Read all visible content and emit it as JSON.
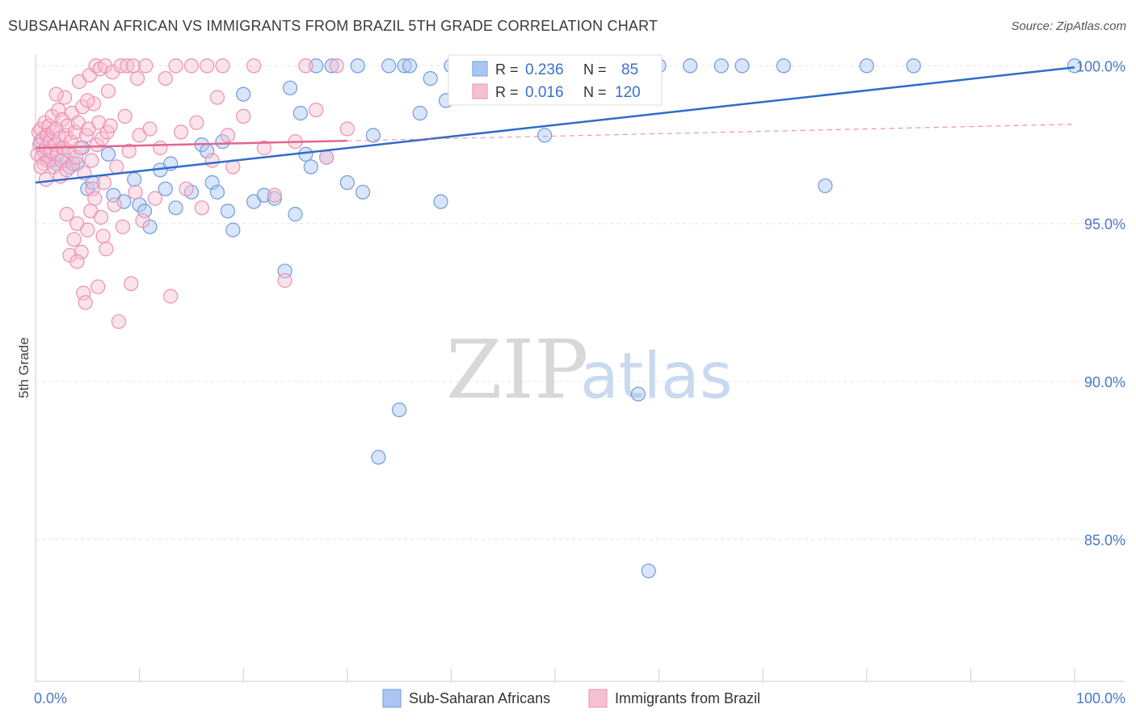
{
  "title": "SUBSAHARAN AFRICAN VS IMMIGRANTS FROM BRAZIL 5TH GRADE CORRELATION CHART",
  "source": "Source: ZipAtlas.com",
  "watermark": {
    "zip": "ZIP",
    "atlas": "atlas"
  },
  "chart_data": {
    "type": "scatter",
    "title": "SUBSAHARAN AFRICAN VS IMMIGRANTS FROM BRAZIL 5TH GRADE CORRELATION CHART",
    "xlabel": "",
    "ylabel": "5th Grade",
    "xlim": [
      0,
      100
    ],
    "ylim": [
      80.5,
      100.6
    ],
    "y_ticks": [
      {
        "value": 85,
        "label": "85.0%"
      },
      {
        "value": 90,
        "label": "90.0%"
      },
      {
        "value": 95,
        "label": "95.0%"
      },
      {
        "value": 100,
        "label": "100.0%"
      }
    ],
    "x_tick_labels": {
      "min": "0.0%",
      "max": "100.0%"
    },
    "x_minor_ticks": [
      0,
      10,
      20,
      30,
      40,
      50,
      60,
      70,
      80,
      90,
      100
    ],
    "grid": true,
    "legend": {
      "position": "top-center",
      "rows": [
        {
          "r_label": "R =",
          "r_value": "0.236",
          "n_label": "N =",
          "n_value": "85"
        },
        {
          "r_label": "R =",
          "r_value": "0.016",
          "n_label": "N =",
          "n_value": "120"
        }
      ]
    },
    "series": [
      {
        "name": "Sub-Saharan Africans",
        "color": "#6f9be0",
        "fill": "#aac6f0",
        "line_color": "#2f6cc9",
        "trend": {
          "x0": 0,
          "y0": 96.3,
          "x1": 100,
          "y1": 99.95,
          "solid_to": 100
        },
        "points": [
          [
            0.5,
            97.6
          ],
          [
            0.8,
            97.3
          ],
          [
            1.2,
            97.8
          ],
          [
            1.5,
            97.0
          ],
          [
            2.0,
            96.9
          ],
          [
            2.5,
            97.4
          ],
          [
            3.0,
            97.0
          ],
          [
            3.3,
            96.8
          ],
          [
            4.0,
            96.9
          ],
          [
            4.5,
            97.4
          ],
          [
            5.0,
            96.1
          ],
          [
            5.5,
            96.3
          ],
          [
            7.0,
            97.2
          ],
          [
            7.5,
            95.9
          ],
          [
            8.5,
            95.7
          ],
          [
            9.5,
            96.4
          ],
          [
            10.0,
            95.6
          ],
          [
            10.5,
            95.4
          ],
          [
            11.0,
            94.9
          ],
          [
            12.0,
            96.7
          ],
          [
            12.5,
            96.1
          ],
          [
            13.0,
            96.9
          ],
          [
            13.5,
            95.5
          ],
          [
            15.0,
            96.0
          ],
          [
            16.0,
            97.5
          ],
          [
            16.5,
            97.3
          ],
          [
            17.0,
            96.3
          ],
          [
            17.5,
            96.0
          ],
          [
            18.0,
            97.6
          ],
          [
            18.5,
            95.4
          ],
          [
            19.0,
            94.8
          ],
          [
            20.0,
            99.1
          ],
          [
            21.0,
            95.7
          ],
          [
            22.0,
            95.9
          ],
          [
            23.0,
            95.8
          ],
          [
            24.0,
            93.5
          ],
          [
            24.5,
            99.3
          ],
          [
            25.0,
            95.3
          ],
          [
            25.5,
            98.5
          ],
          [
            26.0,
            97.2
          ],
          [
            26.5,
            96.8
          ],
          [
            27.0,
            100.0
          ],
          [
            28.0,
            97.1
          ],
          [
            28.5,
            100.0
          ],
          [
            30.0,
            96.3
          ],
          [
            31.0,
            100.0
          ],
          [
            31.5,
            96.0
          ],
          [
            32.5,
            97.8
          ],
          [
            33.0,
            87.6
          ],
          [
            34.0,
            100.0
          ],
          [
            35.0,
            89.1
          ],
          [
            35.5,
            100.0
          ],
          [
            36.0,
            100.0
          ],
          [
            37.0,
            98.5
          ],
          [
            38.0,
            99.6
          ],
          [
            39.0,
            95.7
          ],
          [
            39.5,
            98.9
          ],
          [
            40.0,
            100.0
          ],
          [
            40.5,
            100.0
          ],
          [
            41.0,
            100.0
          ],
          [
            42.0,
            100.0
          ],
          [
            42.5,
            99.3
          ],
          [
            43.0,
            100.0
          ],
          [
            44.0,
            100.0
          ],
          [
            45.0,
            99.6
          ],
          [
            46.0,
            100.0
          ],
          [
            47.0,
            100.0
          ],
          [
            48.0,
            100.0
          ],
          [
            49.0,
            97.8
          ],
          [
            50.0,
            100.0
          ],
          [
            52.0,
            100.0
          ],
          [
            53.5,
            100.0
          ],
          [
            55.0,
            100.0
          ],
          [
            57.0,
            100.0
          ],
          [
            58.0,
            89.6
          ],
          [
            59.0,
            84.0
          ],
          [
            60.0,
            100.0
          ],
          [
            63.0,
            100.0
          ],
          [
            66.0,
            100.0
          ],
          [
            68.0,
            100.0
          ],
          [
            72.0,
            100.0
          ],
          [
            76.0,
            96.2
          ],
          [
            80.0,
            100.0
          ],
          [
            84.5,
            100.0
          ],
          [
            100.0,
            100.0
          ]
        ]
      },
      {
        "name": "Immigrants from Brazil",
        "color": "#ee8fb0",
        "fill": "#f6c0d3",
        "line_color": "#e4648f",
        "trend": {
          "x0": 0,
          "y0": 97.4,
          "x1": 100,
          "y1": 98.15,
          "solid_to": 30
        },
        "points": [
          [
            0.2,
            97.2
          ],
          [
            0.3,
            97.9
          ],
          [
            0.4,
            97.5
          ],
          [
            0.5,
            98.0
          ],
          [
            0.6,
            97.1
          ],
          [
            0.7,
            97.7
          ],
          [
            0.8,
            96.9
          ],
          [
            0.9,
            98.2
          ],
          [
            1.0,
            97.4
          ],
          [
            1.1,
            97.8
          ],
          [
            1.2,
            97.0
          ],
          [
            1.3,
            98.1
          ],
          [
            1.4,
            97.6
          ],
          [
            1.5,
            97.3
          ],
          [
            1.6,
            98.4
          ],
          [
            1.7,
            97.9
          ],
          [
            1.8,
            96.8
          ],
          [
            1.9,
            97.5
          ],
          [
            2.0,
            98.0
          ],
          [
            2.1,
            97.2
          ],
          [
            2.2,
            98.6
          ],
          [
            2.3,
            97.7
          ],
          [
            2.4,
            96.5
          ],
          [
            2.5,
            97.0
          ],
          [
            2.6,
            98.3
          ],
          [
            2.7,
            97.4
          ],
          [
            2.8,
            99.0
          ],
          [
            2.9,
            97.8
          ],
          [
            3.0,
            96.7
          ],
          [
            3.1,
            98.1
          ],
          [
            3.2,
            97.3
          ],
          [
            3.3,
            94.0
          ],
          [
            3.4,
            97.6
          ],
          [
            3.5,
            98.5
          ],
          [
            3.6,
            96.9
          ],
          [
            3.7,
            94.5
          ],
          [
            3.8,
            97.9
          ],
          [
            3.9,
            97.1
          ],
          [
            4.0,
            95.0
          ],
          [
            4.1,
            98.2
          ],
          [
            4.2,
            99.5
          ],
          [
            4.3,
            97.4
          ],
          [
            4.4,
            94.1
          ],
          [
            4.5,
            98.7
          ],
          [
            4.6,
            92.8
          ],
          [
            4.7,
            96.6
          ],
          [
            4.8,
            92.5
          ],
          [
            4.9,
            97.8
          ],
          [
            5.0,
            94.8
          ],
          [
            5.1,
            98.0
          ],
          [
            5.2,
            99.7
          ],
          [
            5.3,
            95.4
          ],
          [
            5.4,
            97.0
          ],
          [
            5.5,
            96.1
          ],
          [
            5.6,
            98.8
          ],
          [
            5.7,
            95.8
          ],
          [
            5.8,
            100.0
          ],
          [
            5.9,
            97.5
          ],
          [
            6.0,
            93.0
          ],
          [
            6.1,
            98.2
          ],
          [
            6.2,
            99.9
          ],
          [
            6.3,
            95.2
          ],
          [
            6.4,
            97.7
          ],
          [
            6.5,
            94.6
          ],
          [
            6.6,
            96.3
          ],
          [
            6.7,
            100.0
          ],
          [
            6.8,
            94.2
          ],
          [
            6.9,
            97.9
          ],
          [
            7.0,
            99.2
          ],
          [
            7.2,
            98.1
          ],
          [
            7.4,
            99.8
          ],
          [
            7.6,
            95.6
          ],
          [
            7.8,
            96.8
          ],
          [
            8.0,
            91.9
          ],
          [
            8.2,
            100.0
          ],
          [
            8.4,
            94.9
          ],
          [
            8.6,
            98.4
          ],
          [
            8.8,
            100.0
          ],
          [
            9.0,
            97.3
          ],
          [
            9.2,
            93.1
          ],
          [
            9.4,
            100.0
          ],
          [
            9.6,
            96.0
          ],
          [
            9.8,
            99.6
          ],
          [
            10.0,
            97.8
          ],
          [
            10.3,
            95.1
          ],
          [
            10.6,
            100.0
          ],
          [
            11.0,
            98.0
          ],
          [
            11.5,
            95.8
          ],
          [
            12.0,
            97.4
          ],
          [
            12.5,
            99.6
          ],
          [
            13.0,
            92.7
          ],
          [
            13.5,
            100.0
          ],
          [
            14.0,
            97.9
          ],
          [
            14.5,
            96.1
          ],
          [
            15.0,
            100.0
          ],
          [
            15.5,
            98.2
          ],
          [
            16.0,
            95.5
          ],
          [
            16.5,
            100.0
          ],
          [
            17.0,
            97.0
          ],
          [
            17.5,
            99.0
          ],
          [
            18.0,
            100.0
          ],
          [
            18.5,
            97.8
          ],
          [
            19.0,
            96.8
          ],
          [
            20.0,
            98.4
          ],
          [
            21.0,
            100.0
          ],
          [
            22.0,
            97.4
          ],
          [
            23.0,
            95.9
          ],
          [
            24.0,
            93.2
          ],
          [
            25.0,
            97.6
          ],
          [
            26.0,
            100.0
          ],
          [
            27.0,
            98.6
          ],
          [
            28.0,
            97.1
          ],
          [
            29.0,
            100.0
          ],
          [
            30.0,
            98.0
          ],
          [
            0.5,
            96.8
          ],
          [
            1.0,
            96.4
          ],
          [
            2.0,
            99.1
          ],
          [
            3.0,
            95.3
          ],
          [
            4.0,
            93.8
          ],
          [
            5.0,
            98.9
          ]
        ]
      }
    ]
  }
}
